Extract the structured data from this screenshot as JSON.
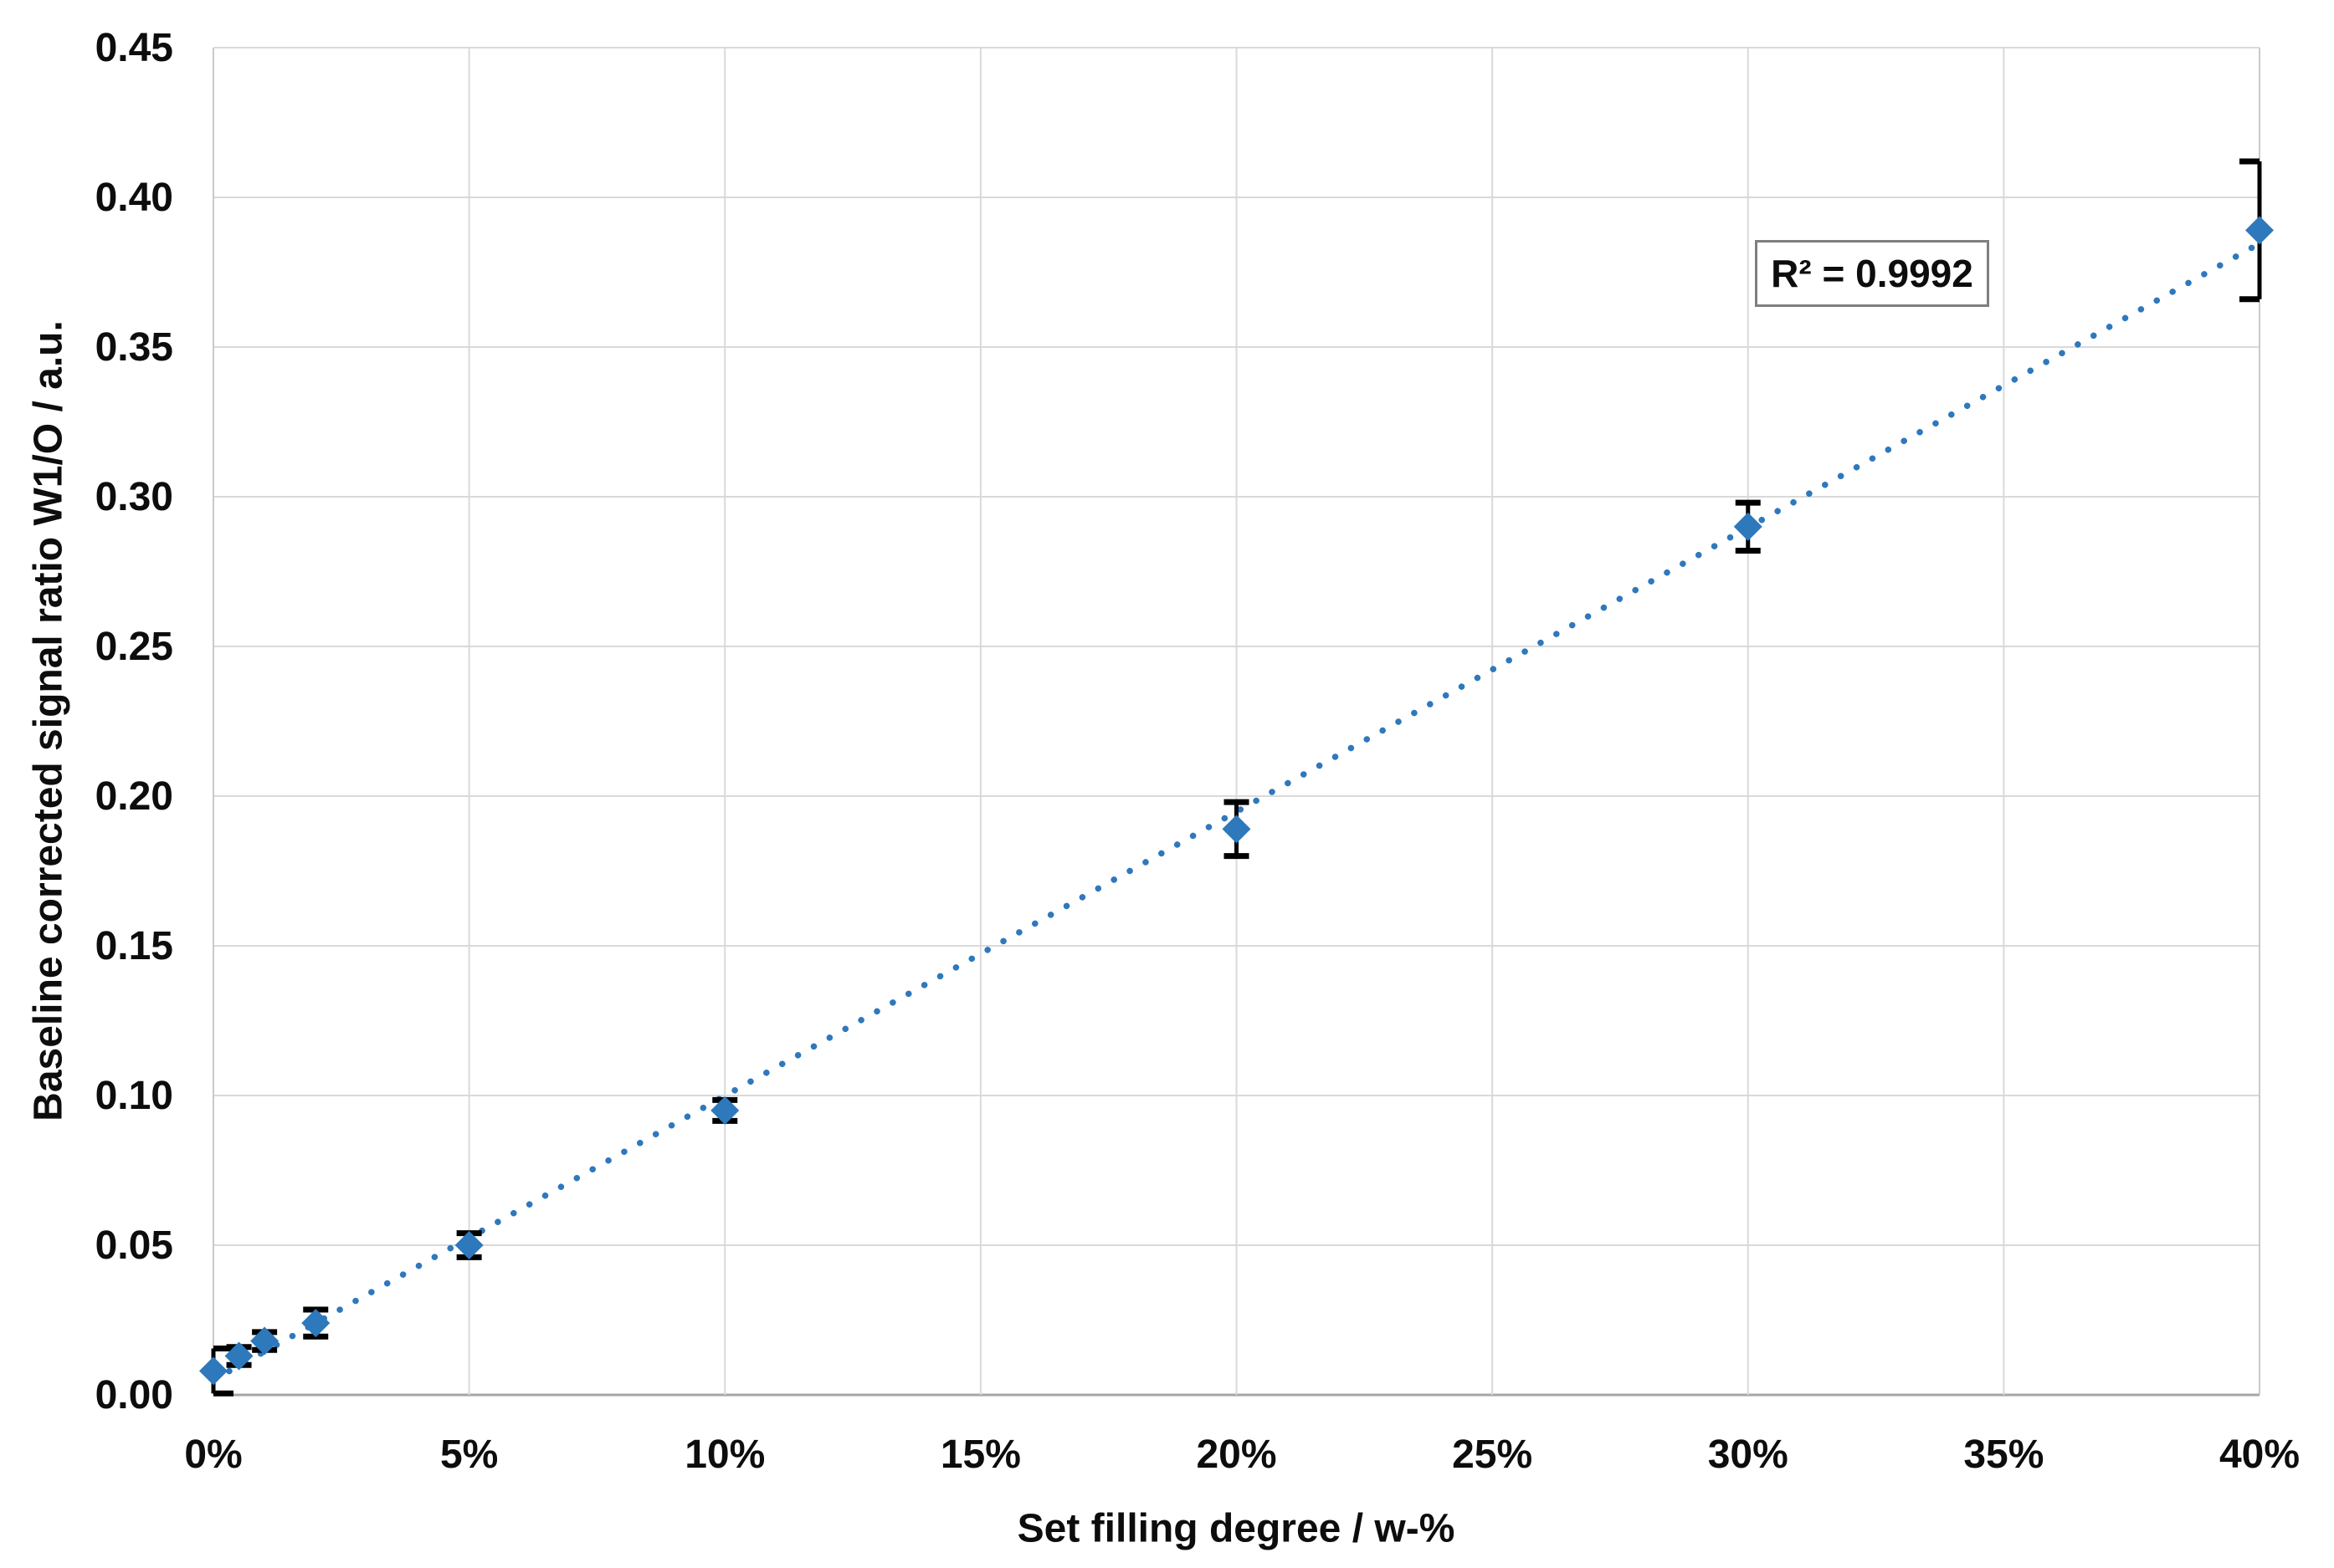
{
  "chart_data": {
    "type": "scatter",
    "title": "",
    "xlabel": "Set filling degree / w-%",
    "ylabel": "Baseline corrected signal ratio W1/O / a.u.",
    "xlim": [
      0,
      40
    ],
    "ylim": [
      0,
      0.45
    ],
    "grid": true,
    "legend_position": "none",
    "x_ticks": [
      {
        "v": 0,
        "label": "0%"
      },
      {
        "v": 5,
        "label": "5%"
      },
      {
        "v": 10,
        "label": "10%"
      },
      {
        "v": 15,
        "label": "15%"
      },
      {
        "v": 20,
        "label": "20%"
      },
      {
        "v": 25,
        "label": "25%"
      },
      {
        "v": 30,
        "label": "30%"
      },
      {
        "v": 35,
        "label": "35%"
      },
      {
        "v": 40,
        "label": "40%"
      }
    ],
    "y_ticks": [
      {
        "v": 0.0,
        "label": "0.00"
      },
      {
        "v": 0.05,
        "label": "0.05"
      },
      {
        "v": 0.1,
        "label": "0.10"
      },
      {
        "v": 0.15,
        "label": "0.15"
      },
      {
        "v": 0.2,
        "label": "0.20"
      },
      {
        "v": 0.25,
        "label": "0.25"
      },
      {
        "v": 0.3,
        "label": "0.30"
      },
      {
        "v": 0.35,
        "label": "0.35"
      },
      {
        "v": 0.4,
        "label": "0.40"
      },
      {
        "v": 0.45,
        "label": "0.45"
      }
    ],
    "series": [
      {
        "name": "Baseline corrected signal ratio W1/O",
        "marker": "diamond",
        "marker_color": "#2E78BC",
        "error_bar_color": "#000000",
        "points": [
          {
            "x": 0,
            "y": 0.008,
            "err": 0.0075,
            "cap_style": "right"
          },
          {
            "x": 0.5,
            "y": 0.013,
            "err": 0.003,
            "cap_style": "both"
          },
          {
            "x": 1,
            "y": 0.018,
            "err": 0.003,
            "cap_style": "both"
          },
          {
            "x": 2,
            "y": 0.024,
            "err": 0.0045,
            "cap_style": "both"
          },
          {
            "x": 5,
            "y": 0.05,
            "err": 0.004,
            "cap_style": "both"
          },
          {
            "x": 10,
            "y": 0.095,
            "err": 0.0035,
            "cap_style": "both"
          },
          {
            "x": 20,
            "y": 0.189,
            "err": 0.009,
            "cap_style": "both"
          },
          {
            "x": 30,
            "y": 0.29,
            "err": 0.008,
            "cap_style": "both"
          },
          {
            "x": 40,
            "y": 0.389,
            "err": 0.023,
            "cap_style": "left"
          }
        ]
      }
    ],
    "trendline": {
      "type": "linear",
      "style": "dotted",
      "color": "#2E78BC",
      "slope_per_wpct": 0.00949,
      "intercept": 0.005,
      "r_squared": 0.9992
    },
    "annotation": {
      "r2_label": "R² = 0.9992"
    },
    "colors": {
      "gridline": "#D9D9D9",
      "axis_line": "#A6A6A6",
      "plot_border": "#C9C9C9",
      "text": "#0d0d0d",
      "marker": "#2E78BC",
      "trendline": "#2E78BC",
      "error_bar": "#000000",
      "background": "#FFFFFF"
    }
  }
}
